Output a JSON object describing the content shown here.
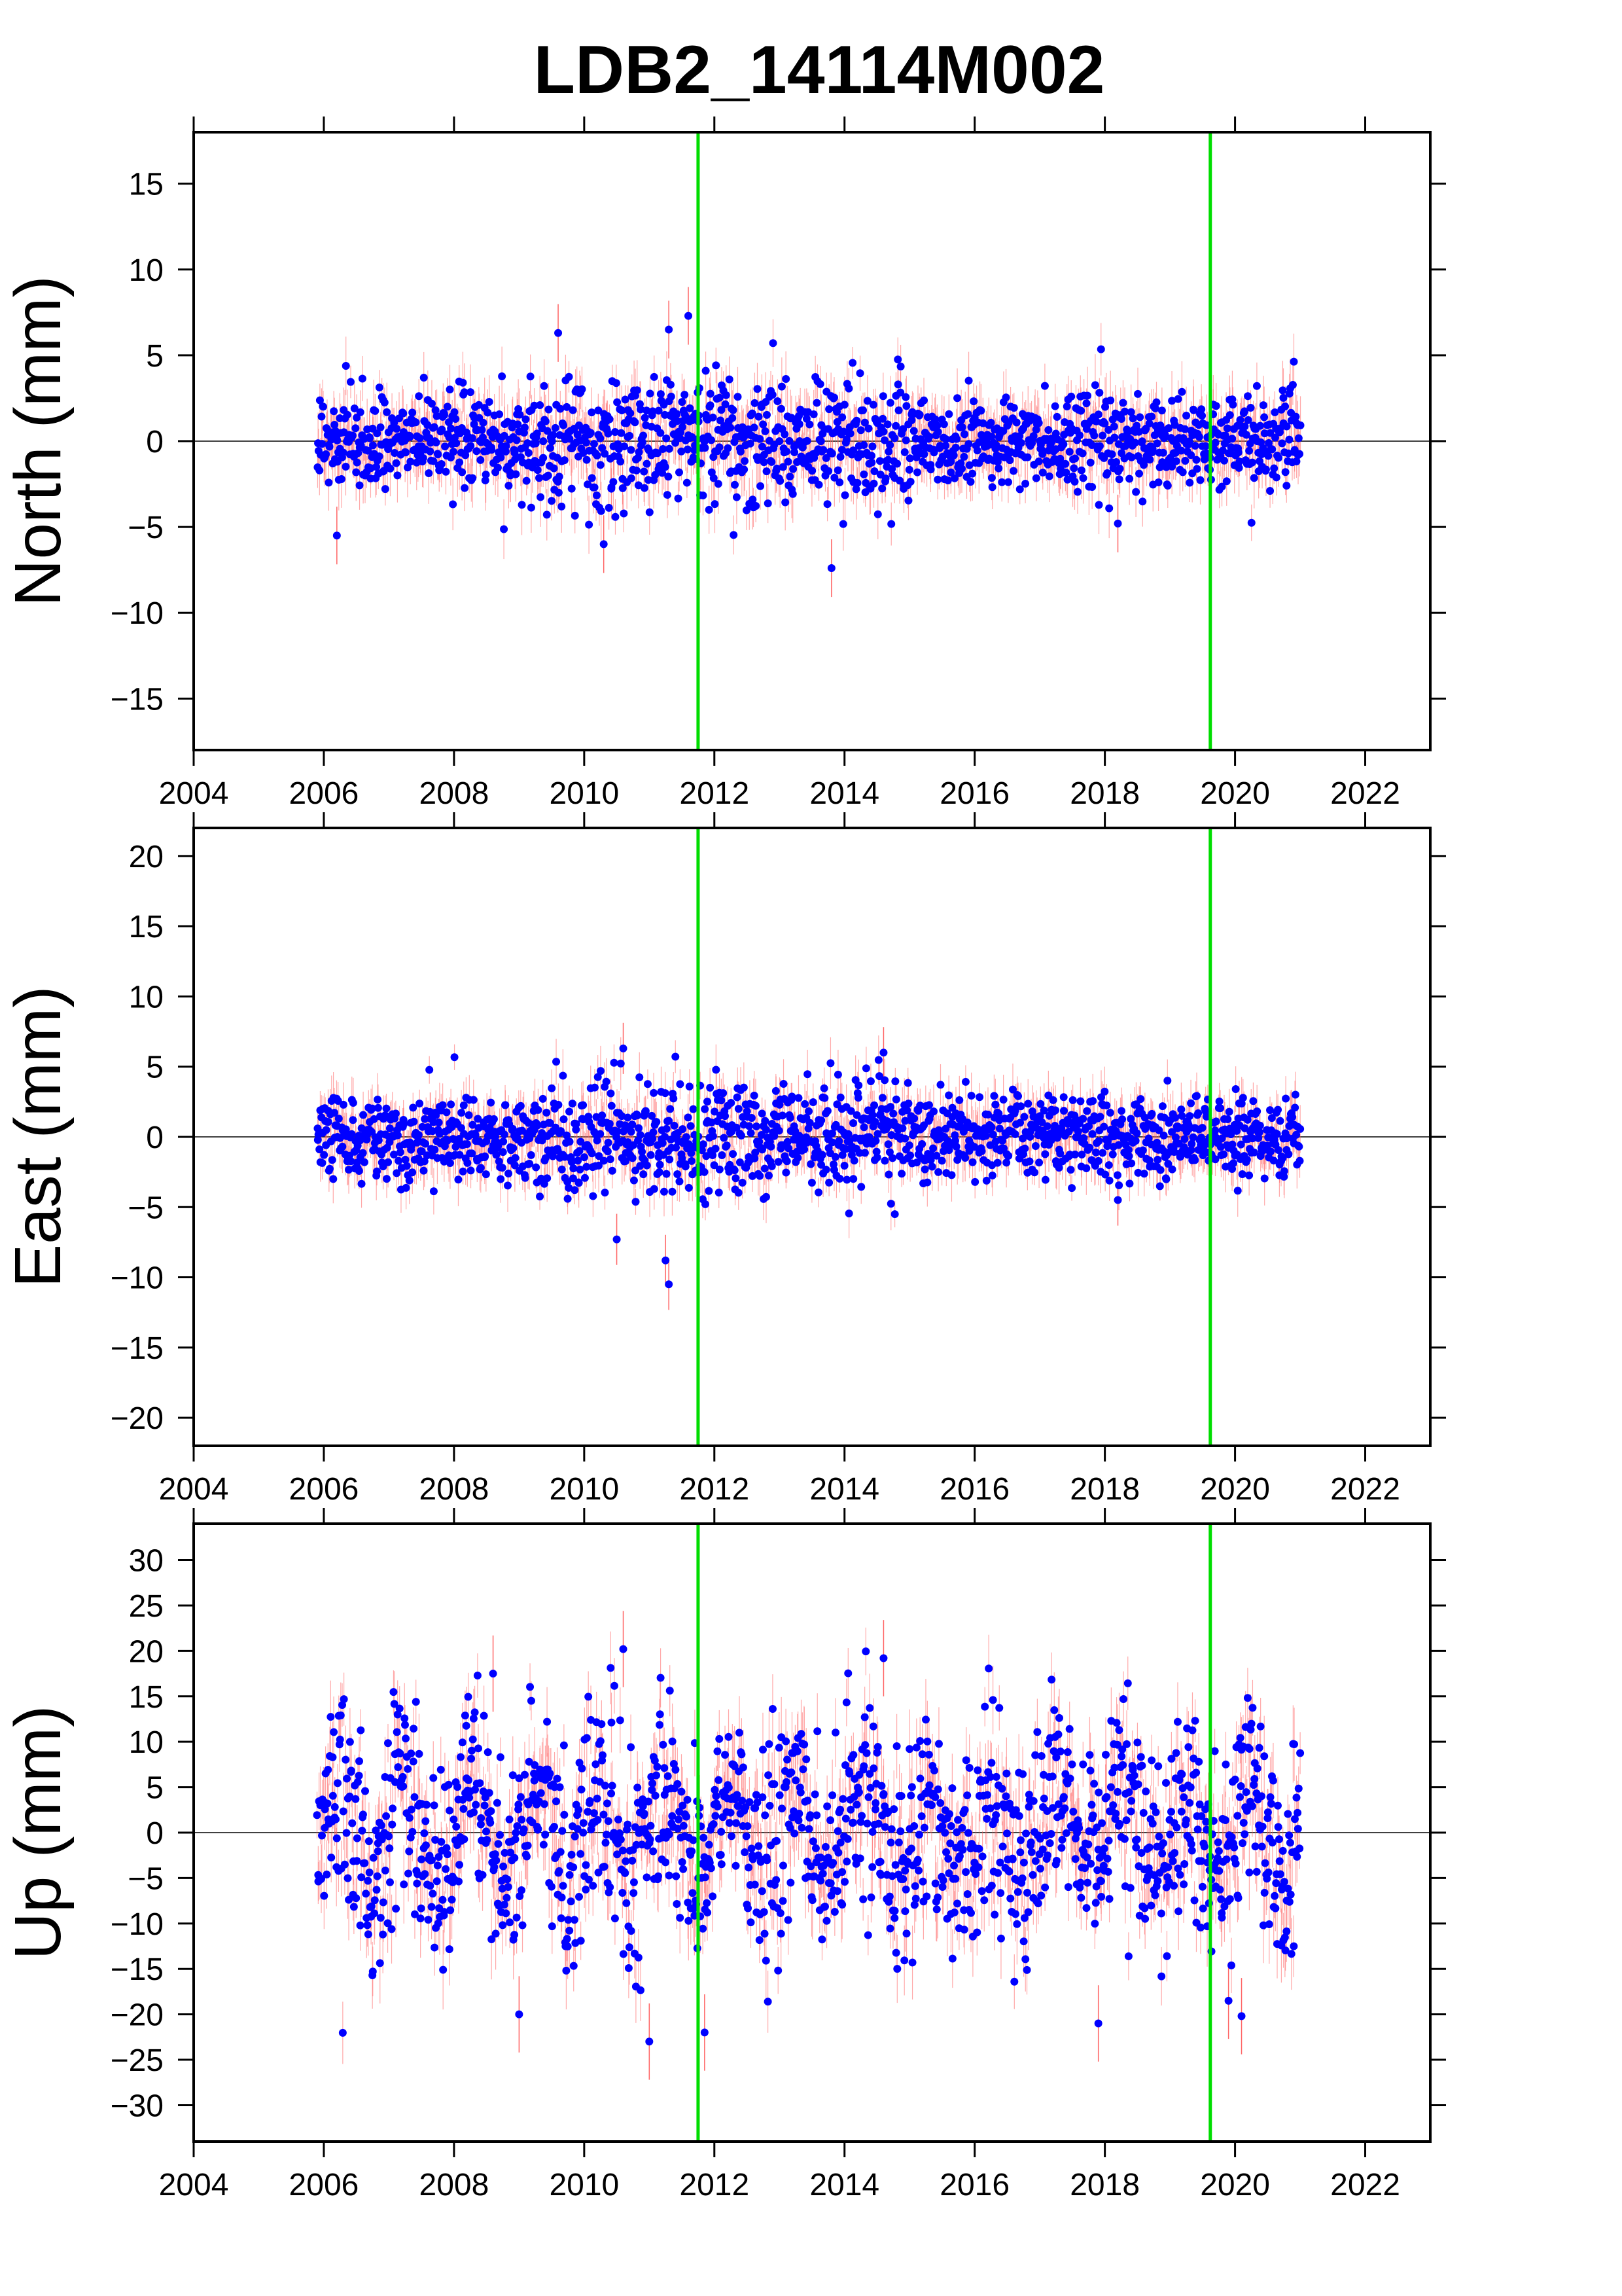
{
  "title": "LDB2_14114M002",
  "colors": {
    "points": "#0000ff",
    "error_bars": "#ff6464",
    "markers": "#00dd00",
    "frame": "#000000",
    "zero_line": "#000000"
  },
  "chart_data": [
    {
      "type": "scatter",
      "title": "LDB2_14114M002",
      "ylabel": "North (mm)",
      "xlabel": "",
      "xlim": [
        2004,
        2023
      ],
      "ylim": [
        -18,
        18
      ],
      "xticks": [
        2004,
        2006,
        2008,
        2010,
        2012,
        2014,
        2016,
        2018,
        2020,
        2022
      ],
      "xtick_labels": [
        "2004",
        "2006",
        "2008",
        "2010",
        "2012",
        "2014",
        "2016",
        "2018",
        "2020",
        "2022"
      ],
      "yticks": [
        -15,
        -10,
        -5,
        0,
        5,
        10,
        15
      ],
      "ytick_labels": [
        "−15",
        "−10",
        "−5",
        "0",
        "5",
        "10",
        "15"
      ],
      "grid": false,
      "zero_line": true,
      "vertical_markers": [
        2011.75,
        2019.62
      ],
      "series": [
        {
          "time_range": [
            2005.9,
            2021.0
          ],
          "approx_scatter_mm": 1.4,
          "error_bar_mm": 1.2,
          "extremes": [
            [
              2006.2,
              -5.5
            ],
            [
              2010.3,
              -6.0
            ],
            [
              2011.6,
              7.3
            ],
            [
              2011.3,
              6.5
            ],
            [
              2009.6,
              6.3
            ],
            [
              2013.8,
              -7.4
            ],
            [
              2018.2,
              -4.8
            ]
          ]
        }
      ]
    },
    {
      "type": "scatter",
      "ylabel": "East (mm)",
      "xlabel": "",
      "xlim": [
        2004,
        2023
      ],
      "ylim": [
        -22,
        22
      ],
      "xticks": [
        2004,
        2006,
        2008,
        2010,
        2012,
        2014,
        2016,
        2018,
        2020,
        2022
      ],
      "xtick_labels": [
        "2004",
        "2006",
        "2008",
        "2010",
        "2012",
        "2014",
        "2016",
        "2018",
        "2020",
        "2022"
      ],
      "yticks": [
        -20,
        -15,
        -10,
        -5,
        0,
        5,
        10,
        15,
        20
      ],
      "ytick_labels": [
        "−20",
        "−15",
        "−10",
        "−5",
        "0",
        "5",
        "10",
        "15",
        "20"
      ],
      "grid": false,
      "zero_line": true,
      "vertical_markers": [
        2011.75,
        2019.62
      ],
      "series": [
        {
          "time_range": [
            2005.9,
            2021.0
          ],
          "approx_scatter_mm": 1.5,
          "error_bar_mm": 1.3,
          "extremes": [
            [
              2011.3,
              -10.5
            ],
            [
              2011.25,
              -8.8
            ],
            [
              2010.5,
              -7.3
            ],
            [
              2010.6,
              6.3
            ],
            [
              2014.6,
              6.0
            ],
            [
              2018.2,
              -4.5
            ]
          ]
        }
      ]
    },
    {
      "type": "scatter",
      "ylabel": "Up (mm)",
      "xlabel": "",
      "xlim": [
        2004,
        2023
      ],
      "ylim": [
        -34,
        34
      ],
      "xticks": [
        2004,
        2006,
        2008,
        2010,
        2012,
        2014,
        2016,
        2018,
        2020,
        2022
      ],
      "xtick_labels": [
        "2004",
        "2006",
        "2008",
        "2010",
        "2012",
        "2014",
        "2016",
        "2018",
        "2020",
        "2022"
      ],
      "yticks": [
        -30,
        -25,
        -20,
        -15,
        -10,
        -5,
        0,
        5,
        10,
        15,
        20,
        25,
        30
      ],
      "ytick_labels": [
        "−30",
        "−25",
        "−20",
        "−15",
        "−10",
        "−5",
        "0",
        "5",
        "10",
        "15",
        "20",
        "25",
        "30"
      ],
      "grid": false,
      "zero_line": true,
      "vertical_markers": [
        2011.75,
        2019.62
      ],
      "series": [
        {
          "time_range": [
            2005.9,
            2021.0
          ],
          "approx_scatter_mm": 5.5,
          "error_bar_mm": 3.0,
          "extremes": [
            [
              2010.6,
              20.2
            ],
            [
              2014.6,
              19.2
            ],
            [
              2008.6,
              17.5
            ],
            [
              2011.0,
              -23.0
            ],
            [
              2011.85,
              -22.0
            ],
            [
              2020.1,
              -20.2
            ],
            [
              2009.0,
              -20.0
            ],
            [
              2017.9,
              -21.0
            ],
            [
              2019.9,
              -18.5
            ]
          ]
        }
      ]
    }
  ]
}
